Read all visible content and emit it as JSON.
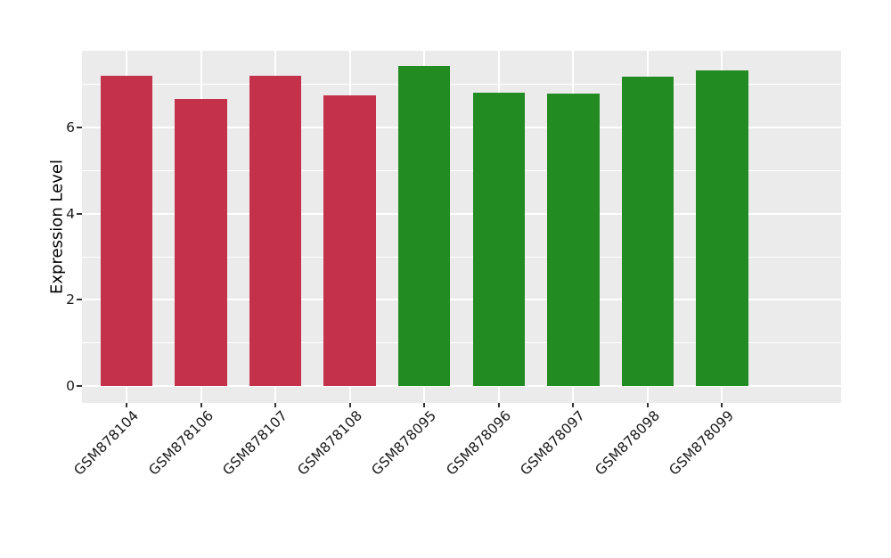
{
  "figure": {
    "background": "#FFFFFF"
  },
  "chart_data": {
    "type": "bar",
    "title": "",
    "xlabel": "",
    "ylabel": "Expression Level",
    "categories": [
      "GSM878104",
      "GSM878106",
      "GSM878107",
      "GSM878108",
      "GSM878095",
      "GSM878096",
      "GSM878097",
      "GSM878098",
      "GSM878099"
    ],
    "values": [
      7.21,
      6.66,
      7.2,
      6.74,
      7.42,
      6.81,
      6.79,
      7.19,
      7.32
    ],
    "bar_colors": [
      "#C3314B",
      "#C3314B",
      "#C3314B",
      "#C3314B",
      "#228B22",
      "#228B22",
      "#228B22",
      "#228B22",
      "#228B22"
    ],
    "yticks": [
      0,
      2,
      4,
      6
    ],
    "ytick_labels": [
      "0",
      "2",
      "4",
      "6"
    ],
    "yticks_minor": [
      1,
      3,
      5,
      7
    ],
    "ylim": [
      -0.39,
      7.78
    ],
    "grid": true,
    "legend_position": "none",
    "panel_background": "#EBEBEB",
    "grid_color": "#FFFFFF",
    "tick_mark_color": "#333333",
    "axis_text_color": "#1A1A1A",
    "axis_title_color": "#000000"
  }
}
